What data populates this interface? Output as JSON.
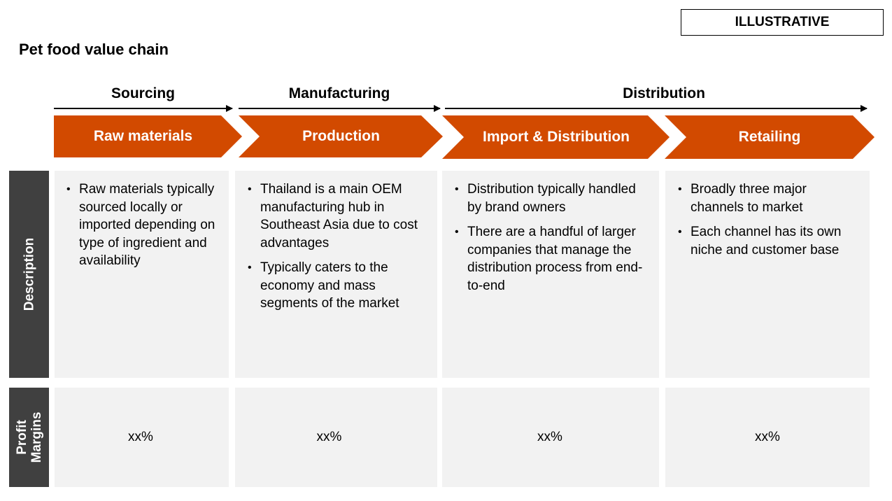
{
  "badge": "ILLUSTRATIVE",
  "title": "Pet food value chain",
  "phases": [
    "Sourcing",
    "Manufacturing",
    "Distribution"
  ],
  "stages": [
    "Raw materials",
    "Production",
    "Import & Distribution",
    "Retailing"
  ],
  "row_labels": {
    "description": "Description",
    "profit_margins": "Profit Margins",
    "profit_margins_line1": "Profit",
    "profit_margins_line2": "Margins"
  },
  "descriptions": [
    [
      "Raw materials typically sourced locally or imported depending on type of ingredient and availability"
    ],
    [
      "Thailand is a main OEM manufacturing hub in Southeast Asia due to cost advantages",
      "Typically caters to the economy and mass segments of the market"
    ],
    [
      "Distribution typically handled by brand owners",
      "There are a handful of larger companies that manage the distribution process from end-to-end"
    ],
    [
      "Broadly three major channels to market",
      "Each channel has its own niche and customer base"
    ]
  ],
  "margins": [
    "xx%",
    "xx%",
    "xx%",
    "xx%"
  ],
  "colors": {
    "accent": "#D24A00",
    "row_header": "#404040",
    "cell": "#F2F2F2"
  }
}
